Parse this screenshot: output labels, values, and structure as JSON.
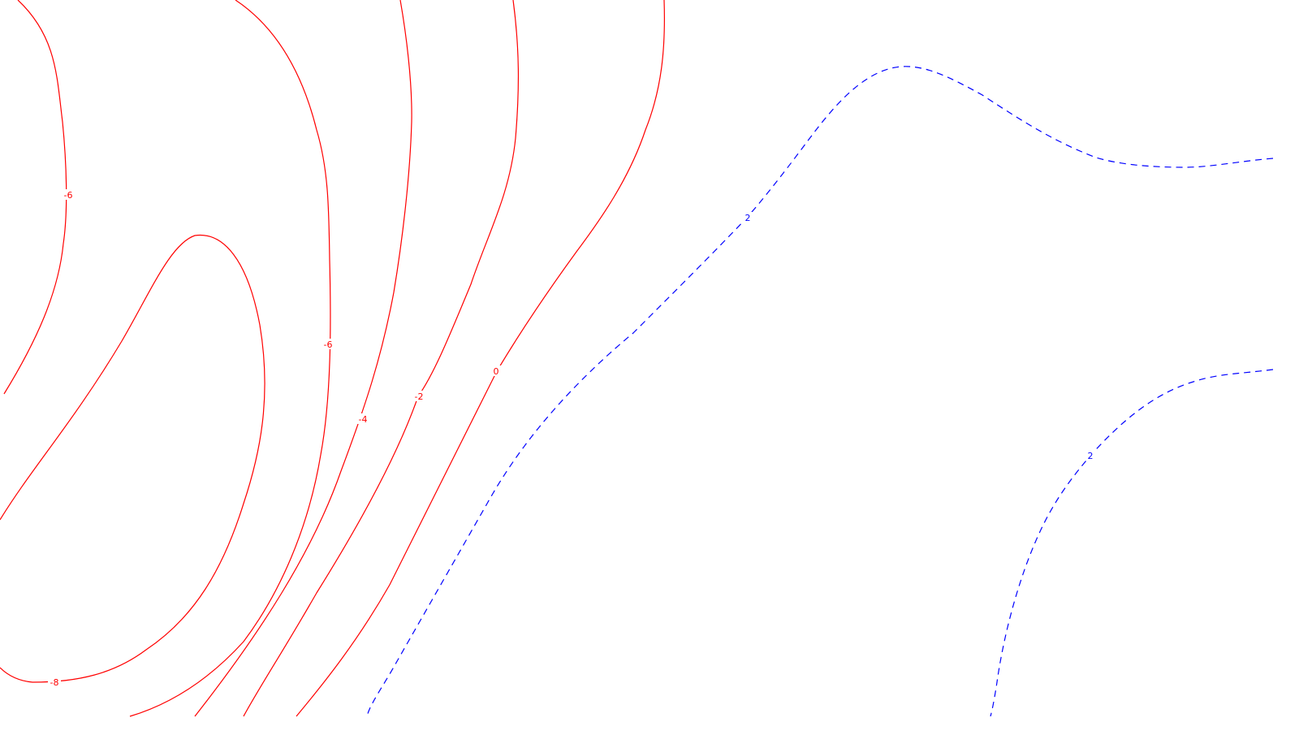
{
  "chart_data": {
    "type": "contour",
    "title": "",
    "xlabel": "",
    "ylabel": "",
    "grid": false,
    "legend": "none",
    "colors": {
      "negative": "#ff0000",
      "positive": "#0000ff",
      "background": "#ffffff"
    },
    "line_styles": {
      "negative": "solid",
      "positive": "dashed"
    },
    "contours": [
      {
        "level": -6,
        "label": "-6"
      },
      {
        "level": -8,
        "label": "-8"
      },
      {
        "level": -6,
        "label": "-6"
      },
      {
        "level": -4,
        "label": "-4"
      },
      {
        "level": -2,
        "label": "-2"
      },
      {
        "level": 0,
        "label": "0"
      },
      {
        "level": 2,
        "label": "2"
      },
      {
        "level": 2,
        "label": "2"
      }
    ]
  }
}
